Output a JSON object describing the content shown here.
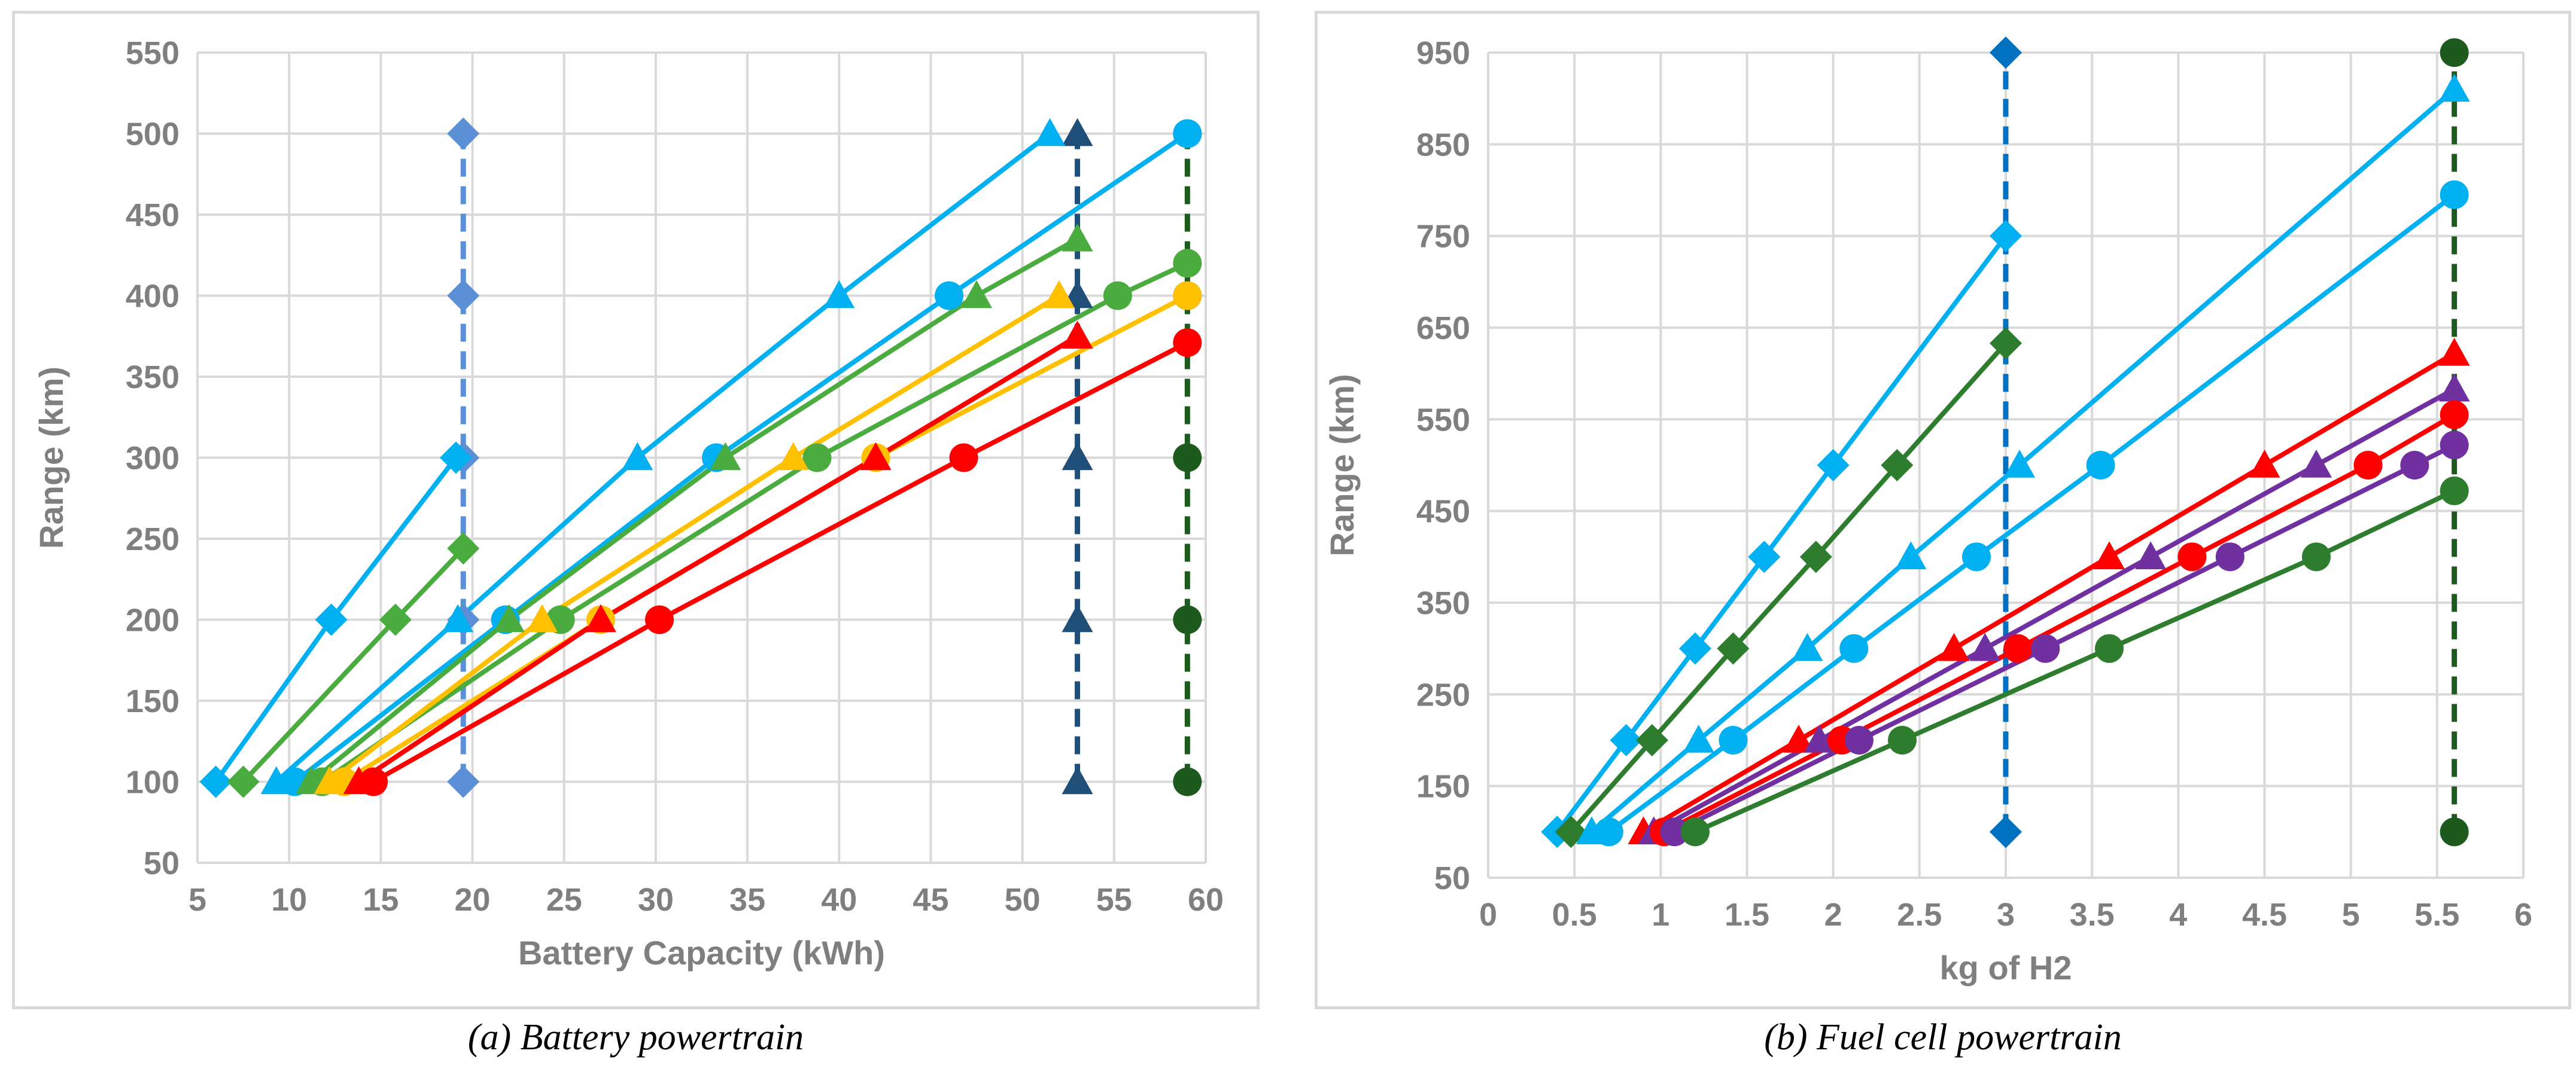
{
  "chart_data": [
    {
      "type": "line",
      "panel": "a",
      "caption": "(a) Battery powertrain",
      "xlabel": "Battery Capacity (kWh)",
      "ylabel": "Range (km)",
      "xlim": [
        5,
        60
      ],
      "ylim": [
        50,
        550
      ],
      "xticks": [
        5,
        10,
        15,
        20,
        25,
        30,
        35,
        40,
        45,
        50,
        55,
        60
      ],
      "yticks": [
        50,
        100,
        150,
        200,
        250,
        300,
        350,
        400,
        450,
        500,
        550
      ],
      "grid": true,
      "series": [
        {
          "name": "A-diamond",
          "color": "#5b8fd6",
          "marker": "diamond",
          "dashed": true,
          "x": [
            19.5,
            19.5,
            19.5,
            19.5,
            19.5
          ],
          "y": [
            100,
            200,
            300,
            400,
            500
          ]
        },
        {
          "name": "A-navy-triangle",
          "color": "#1f4e79",
          "marker": "triangle",
          "dashed": true,
          "x": [
            53,
            53,
            53,
            53,
            53
          ],
          "y": [
            100,
            200,
            300,
            400,
            500
          ]
        },
        {
          "name": "A-darkgreen-circle",
          "color": "#1e5a1e",
          "marker": "circle",
          "dashed": true,
          "x": [
            59,
            59,
            59,
            59,
            59
          ],
          "y": [
            100,
            200,
            300,
            400,
            500
          ]
        },
        {
          "name": "A-cyan-diamond-steep",
          "color": "#00b0f0",
          "marker": "diamond",
          "x": [
            6,
            12.3,
            19.1
          ],
          "y": [
            100,
            200,
            300
          ]
        },
        {
          "name": "A-green-diamond-steep",
          "color": "#4aab3f",
          "marker": "diamond",
          "x": [
            7.5,
            15.8,
            19.5
          ],
          "y": [
            100,
            200,
            244
          ]
        },
        {
          "name": "A-cyan-triangle",
          "color": "#00b0f0",
          "marker": "triangle",
          "x": [
            9.3,
            19.2,
            29,
            40,
            51.5
          ],
          "y": [
            100,
            200,
            300,
            400,
            500
          ]
        },
        {
          "name": "A-cyan-circle",
          "color": "#00b0f0",
          "marker": "circle",
          "x": [
            10.3,
            21.8,
            33.3,
            46,
            59
          ],
          "y": [
            100,
            200,
            300,
            400,
            500
          ]
        },
        {
          "name": "A-green-triangle",
          "color": "#4aab3f",
          "marker": "triangle",
          "x": [
            11.2,
            22,
            33.8,
            47.5,
            53
          ],
          "y": [
            100,
            200,
            300,
            400,
            435
          ]
        },
        {
          "name": "A-green-circle",
          "color": "#4aab3f",
          "marker": "circle",
          "x": [
            11.8,
            24.8,
            38.8,
            55.2,
            59
          ],
          "y": [
            100,
            200,
            300,
            400,
            420
          ]
        },
        {
          "name": "A-yellow-triangle",
          "color": "#ffc000",
          "marker": "triangle",
          "x": [
            12.2,
            23.8,
            37.5,
            52
          ],
          "y": [
            100,
            200,
            300,
            400
          ]
        },
        {
          "name": "A-yellow-circle",
          "color": "#ffc000",
          "marker": "circle",
          "x": [
            13,
            27,
            42,
            59
          ],
          "y": [
            100,
            200,
            300,
            400
          ]
        },
        {
          "name": "A-red-triangle",
          "color": "#ff0000",
          "marker": "triangle",
          "x": [
            13.8,
            27,
            42,
            53
          ],
          "y": [
            100,
            200,
            300,
            375
          ]
        },
        {
          "name": "A-red-circle",
          "color": "#ff0000",
          "marker": "circle",
          "x": [
            14.6,
            30.2,
            46.8,
            59
          ],
          "y": [
            100,
            200,
            300,
            371
          ]
        }
      ]
    },
    {
      "type": "line",
      "panel": "b",
      "caption": "(b) Fuel cell powertrain",
      "xlabel": "kg of H2",
      "ylabel": "Range (km)",
      "xlim": [
        0,
        6
      ],
      "ylim": [
        50,
        950
      ],
      "xticks": [
        "0",
        "0.5",
        "1",
        "1.5",
        "2",
        "2.5",
        "3",
        "3.5",
        "4",
        "4.5",
        "5",
        "5.5",
        "6"
      ],
      "yticks": [
        50,
        150,
        250,
        350,
        450,
        550,
        650,
        750,
        850,
        950
      ],
      "grid": true,
      "series": [
        {
          "name": "B-blue-diamond",
          "color": "#0070c0",
          "marker": "diamond",
          "dashed": true,
          "x": [
            3,
            3
          ],
          "y": [
            100,
            950
          ]
        },
        {
          "name": "B-darkgreen-circle",
          "color": "#1e5a1e",
          "marker": "circle",
          "dashed": true,
          "x": [
            5.6,
            5.6
          ],
          "y": [
            100,
            950
          ]
        },
        {
          "name": "B-cyan-diamond",
          "color": "#00b0f0",
          "marker": "diamond",
          "x": [
            0.4,
            0.8,
            1.2,
            1.6,
            2,
            3
          ],
          "y": [
            100,
            200,
            300,
            400,
            500,
            750
          ]
        },
        {
          "name": "B-green-diamond",
          "color": "#2e7d2e",
          "marker": "diamond",
          "x": [
            0.48,
            0.95,
            1.42,
            1.9,
            2.37,
            3
          ],
          "y": [
            100,
            200,
            300,
            400,
            500,
            633
          ]
        },
        {
          "name": "B-cyan-triangle",
          "color": "#00b0f0",
          "marker": "triangle",
          "x": [
            0.6,
            1.22,
            1.85,
            2.45,
            3.08,
            5.6
          ],
          "y": [
            100,
            200,
            300,
            400,
            500,
            910
          ]
        },
        {
          "name": "B-cyan-circle",
          "color": "#00b0f0",
          "marker": "circle",
          "x": [
            0.7,
            1.42,
            2.12,
            2.83,
            3.55,
            5.6
          ],
          "y": [
            100,
            200,
            300,
            400,
            500,
            795
          ]
        },
        {
          "name": "B-red-triangle",
          "color": "#ff0000",
          "marker": "triangle",
          "x": [
            0.9,
            1.8,
            2.7,
            3.6,
            4.5,
            5.6
          ],
          "y": [
            100,
            200,
            300,
            400,
            500,
            622
          ]
        },
        {
          "name": "B-purple-triangle",
          "color": "#7030a0",
          "marker": "triangle",
          "x": [
            0.96,
            1.92,
            2.88,
            3.84,
            4.8,
            5.6
          ],
          "y": [
            100,
            200,
            300,
            400,
            500,
            583
          ]
        },
        {
          "name": "B-red-circle",
          "color": "#ff0000",
          "marker": "circle",
          "x": [
            1.02,
            2.05,
            3.07,
            4.08,
            5.1,
            5.6
          ],
          "y": [
            100,
            200,
            300,
            400,
            500,
            555
          ]
        },
        {
          "name": "B-purple-circle",
          "color": "#7030a0",
          "marker": "circle",
          "x": [
            1.08,
            2.15,
            3.23,
            4.3,
            5.37,
            5.6
          ],
          "y": [
            100,
            200,
            300,
            400,
            500,
            522
          ]
        },
        {
          "name": "B-green-circle",
          "color": "#2e7d2e",
          "marker": "circle",
          "x": [
            1.2,
            2.4,
            3.6,
            4.8,
            5.6
          ],
          "y": [
            100,
            200,
            300,
            400,
            472
          ]
        }
      ]
    }
  ]
}
